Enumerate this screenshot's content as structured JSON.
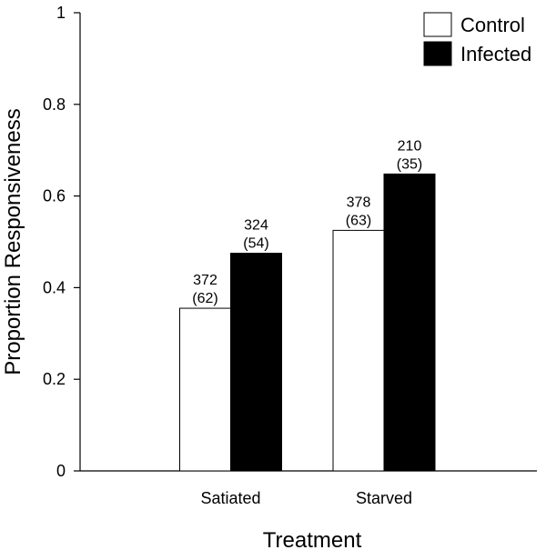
{
  "chart_data": {
    "type": "bar",
    "title": "",
    "xlabel": "Treatment",
    "ylabel": "Proportion Responsiveness",
    "categories": [
      "Satiated",
      "Starved"
    ],
    "series": [
      {
        "name": "Control",
        "values": [
          0.355,
          0.525
        ],
        "labels_top": [
          "372",
          "378"
        ],
        "labels_bottom": [
          "(62)",
          "(63)"
        ],
        "color": "#ffffff"
      },
      {
        "name": "Infected",
        "values": [
          0.475,
          0.648
        ],
        "labels_top": [
          "324",
          "210"
        ],
        "labels_bottom": [
          "(54)",
          "(35)"
        ],
        "color": "#000000"
      }
    ],
    "ylim": [
      0,
      1
    ],
    "yticks": [
      0,
      0.2,
      0.4,
      0.6,
      0.8,
      1
    ],
    "ytick_labels": [
      "0",
      "0.2",
      "0.4",
      "0.6",
      "0.8",
      "1"
    ],
    "grid": false,
    "legend_position": "top-right"
  }
}
